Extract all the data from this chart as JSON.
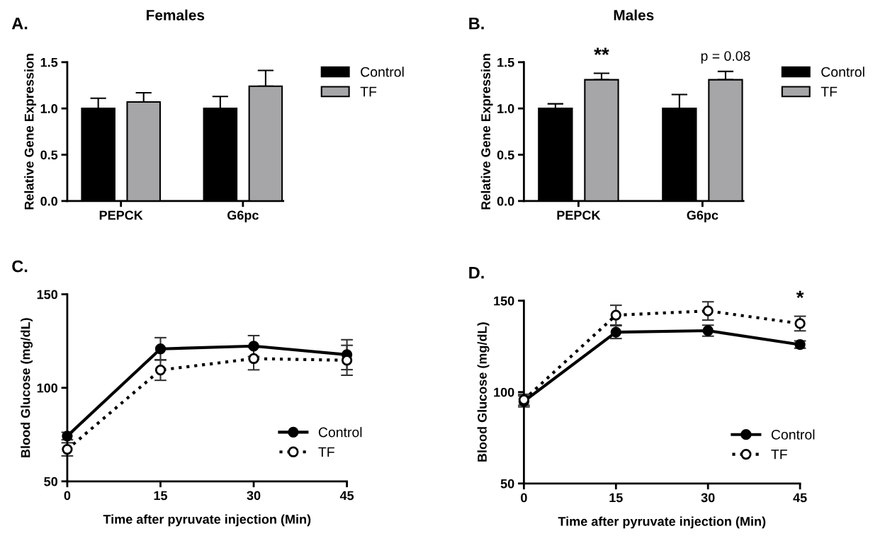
{
  "chart_data": [
    {
      "type": "bar",
      "title": "Females",
      "ylabel": "Relative Gene Expression",
      "categories": [
        "PEPCK",
        "G6pc"
      ],
      "series": [
        {
          "name": "Control",
          "color": "#000000",
          "values": [
            1.0,
            1.0
          ],
          "errors": [
            [
              1.0,
              1.11
            ],
            [
              1.0,
              1.13
            ]
          ]
        },
        {
          "name": "TF",
          "color": "#a6a6a8",
          "values": [
            1.07,
            1.24
          ],
          "errors": [
            [
              1.07,
              1.17
            ],
            [
              1.24,
              1.41
            ]
          ]
        }
      ],
      "ylim": [
        0,
        1.5
      ],
      "yticks": [
        {
          "value": 0,
          "label": "0.0"
        },
        {
          "value": 0.5,
          "label": "0.5"
        },
        {
          "value": 1,
          "label": "1.0"
        },
        {
          "value": 1.5,
          "label": "1.5"
        }
      ],
      "legend": "right",
      "grid": false,
      "annotations": [
        "A."
      ]
    },
    {
      "type": "bar",
      "title": "Males",
      "ylabel": "Relative Gene Expression",
      "categories": [
        "PEPCK",
        "G6pc"
      ],
      "series": [
        {
          "name": "Control",
          "color": "#000000",
          "values": [
            1.0,
            1.0
          ],
          "errors": [
            [
              1.0,
              1.05
            ],
            [
              1.0,
              1.15
            ]
          ]
        },
        {
          "name": "TF",
          "color": "#a6a6a8",
          "values": [
            1.31,
            1.31
          ],
          "errors": [
            [
              1.31,
              1.38
            ],
            [
              1.31,
              1.4
            ]
          ]
        }
      ],
      "ylim": [
        0,
        1.5
      ],
      "yticks": [
        {
          "value": 0,
          "label": "0.0"
        },
        {
          "value": 0.5,
          "label": "0.5"
        },
        {
          "value": 1,
          "label": "1.0"
        },
        {
          "value": 1.5,
          "label": "1.5"
        }
      ],
      "legend": "right",
      "grid": false,
      "annotations": [
        "B.",
        "**",
        "p = 0.08"
      ]
    },
    {
      "type": "line",
      "ylabel": "Blood Glucose (mg/dL)",
      "xlabel": "Time after pyruvate injection (Min)",
      "x": [
        0,
        15,
        30,
        45
      ],
      "series": [
        {
          "name": "Control",
          "color": "#000000",
          "line_style": "solid",
          "values": [
            74.2,
            120.8,
            122.3,
            117.7
          ],
          "errors": [
            2,
            6,
            5.6,
            8
          ]
        },
        {
          "name": "TF",
          "color": "#000000",
          "line_style": "dotted",
          "values": [
            67.1,
            109.5,
            115.6,
            114.7
          ],
          "errors": [
            3.5,
            5.5,
            6,
            8
          ]
        }
      ],
      "xlim": [
        0,
        45
      ],
      "xticks": [
        0,
        15,
        30,
        45
      ],
      "ylim": [
        50,
        150
      ],
      "yticks": [
        50,
        100,
        150
      ],
      "marker": "circle",
      "legend": "bottom right",
      "grid": false,
      "annotations": [
        "C."
      ]
    },
    {
      "type": "line",
      "ylabel": "Blood Glucose (mg/dL)",
      "xlabel": "Time after pyruvate injection (Min)",
      "x": [
        0,
        15,
        30,
        45
      ],
      "series": [
        {
          "name": "Control",
          "color": "#000000",
          "line_style": "solid",
          "values": [
            94.9,
            132.8,
            133.6,
            126.0
          ],
          "errors": [
            3,
            3.5,
            3,
            2
          ]
        },
        {
          "name": "TF",
          "color": "#000000",
          "line_style": "dotted",
          "values": [
            95.8,
            142.1,
            144.4,
            137.5
          ],
          "errors": [
            3,
            5.4,
            5,
            4
          ]
        }
      ],
      "xlim": [
        0,
        45
      ],
      "xticks": [
        0,
        15,
        30,
        45
      ],
      "ylim": [
        50,
        150
      ],
      "yticks": [
        50,
        100,
        150
      ],
      "marker": "circle",
      "legend": "bottom right",
      "grid": false,
      "annotations": [
        "D.",
        "*"
      ]
    }
  ]
}
